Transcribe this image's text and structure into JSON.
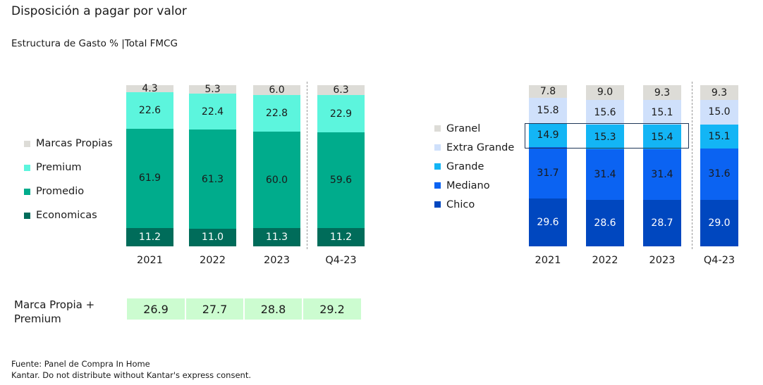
{
  "title": "Disposición a pagar por valor",
  "subtitle": "Estructura de Gasto % |Total FMCG",
  "chart_data": [
    {
      "type": "bar",
      "stacked": true,
      "categories": [
        "2021",
        "2022",
        "2023",
        "Q4-23"
      ],
      "legend_position": "left",
      "series": [
        {
          "name": "Economicas",
          "color": "#006c5a",
          "label_color": "#ffffff",
          "values": [
            11.2,
            11.0,
            11.3,
            11.2
          ]
        },
        {
          "name": "Promedio",
          "color": "#00ac8c",
          "label_color": "#1a1a1a",
          "values": [
            61.9,
            61.3,
            60.0,
            59.6
          ]
        },
        {
          "name": "Premium",
          "color": "#5cf5dd",
          "label_color": "#1a1a1a",
          "values": [
            22.6,
            22.4,
            22.8,
            22.9
          ]
        },
        {
          "name": "Marcas Propias",
          "color": "#dddcd7",
          "label_color": "#1a1a1a",
          "values": [
            4.3,
            5.3,
            6.0,
            6.3
          ]
        }
      ]
    },
    {
      "type": "bar",
      "stacked": true,
      "categories": [
        "2021",
        "2022",
        "2023",
        "Q4-23"
      ],
      "legend_position": "left",
      "series": [
        {
          "name": "Chico",
          "color": "#0047bf",
          "label_color": "#ffffff",
          "values": [
            29.6,
            28.6,
            28.7,
            29.0
          ]
        },
        {
          "name": "Mediano",
          "color": "#0b63f2",
          "label_color": "#1a1a1a",
          "values": [
            31.7,
            31.4,
            31.4,
            31.6
          ]
        },
        {
          "name": "Grande",
          "color": "#13b5f5",
          "label_color": "#1a1a1a",
          "values": [
            14.9,
            15.3,
            15.4,
            15.1
          ]
        },
        {
          "name": "Extra Grande",
          "color": "#cfe0fb",
          "label_color": "#1a1a1a",
          "values": [
            15.8,
            15.6,
            15.1,
            15.0
          ]
        },
        {
          "name": "Granel",
          "color": "#dddcd7",
          "label_color": "#1a1a1a",
          "values": [
            7.8,
            9.0,
            9.3,
            9.3
          ]
        }
      ]
    }
  ],
  "summary_row": {
    "label": "Marca Propia + Premium",
    "values": [
      "26.9",
      "27.7",
      "28.8",
      "29.2"
    ],
    "color": "#ccfcd0"
  },
  "footer": {
    "source": "Fuente: Panel de Compra In Home",
    "disclaimer": "Kantar. Do not distribute without Kantar's express consent."
  }
}
